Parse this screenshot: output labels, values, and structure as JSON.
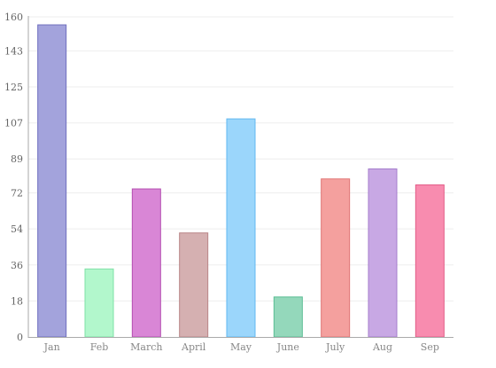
{
  "chart_data": {
    "type": "bar",
    "title": "",
    "xlabel": "",
    "ylabel": "",
    "categories": [
      "Jan",
      "Feb",
      "March",
      "April",
      "May",
      "June",
      "July",
      "Aug",
      "Sep"
    ],
    "values": [
      156,
      34,
      74,
      52,
      109,
      20,
      79,
      84,
      76
    ],
    "ylim": [
      0,
      160
    ],
    "yticks": [
      0,
      18,
      36,
      54,
      72,
      89,
      107,
      125,
      143,
      160
    ],
    "ytick_labels": [
      "0",
      "18",
      "36",
      "54",
      "72",
      "89",
      "107",
      "125",
      "143",
      "160"
    ],
    "grid": true,
    "legend": "none",
    "bar_colors": [
      {
        "fill": "#a3a3dc",
        "stroke": "#6f6fbf"
      },
      {
        "fill": "#b2f7cc",
        "stroke": "#7fe0a6"
      },
      {
        "fill": "#d986d6",
        "stroke": "#b44fb1"
      },
      {
        "fill": "#d5b0b1",
        "stroke": "#b98587"
      },
      {
        "fill": "#9bd6fb",
        "stroke": "#62b8f0"
      },
      {
        "fill": "#94d8bb",
        "stroke": "#5bbd94"
      },
      {
        "fill": "#f4a09e",
        "stroke": "#e07675"
      },
      {
        "fill": "#c8a8e4",
        "stroke": "#a47ccc"
      },
      {
        "fill": "#f88caf",
        "stroke": "#e35d88"
      }
    ]
  }
}
